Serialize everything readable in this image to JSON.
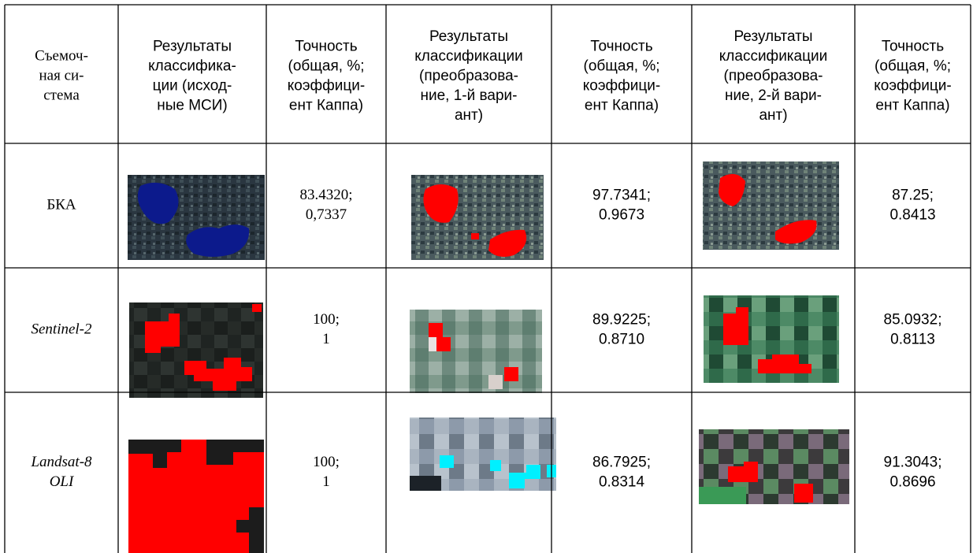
{
  "table": {
    "header": [
      [
        "Съемоч-",
        "ная си-",
        "стема"
      ],
      [
        "Результаты",
        "классифика-",
        "ции (исход-",
        "ные МСИ)"
      ],
      [
        "Точность",
        "(общая, %;",
        "коэффици-",
        "ент Каппа)"
      ],
      [
        "Результаты",
        "классификации",
        "(преобразова-",
        "ние, 1-й вари-",
        "ант)"
      ],
      [
        "Точность",
        "(общая, %;",
        "коэффици-",
        "ент Каппа)"
      ],
      [
        "Результаты",
        "классификации",
        "(преобразова-",
        "ние, 2-й вари-",
        "ант)"
      ],
      [
        "Точность",
        "(общая, %;",
        "коэффици-",
        "ент Каппа)"
      ]
    ],
    "rows": [
      {
        "system": [
          "БКА"
        ],
        "accuracy": [
          [
            "83.4320;",
            "0,7337"
          ],
          [
            "97.7341;",
            "0.9673"
          ],
          [
            "87.25;",
            "0.8413"
          ]
        ]
      },
      {
        "system": [
          "Sentinel-2"
        ],
        "accuracy": [
          [
            "100;",
            "1"
          ],
          [
            "89.9225;",
            "0.8710"
          ],
          [
            "85.0932;",
            "0.8113"
          ]
        ]
      },
      {
        "system": [
          "Landsat-8",
          "OLI"
        ],
        "accuracy": [
          [
            "100;",
            "1"
          ],
          [
            "86.7925;",
            "0.8314"
          ],
          [
            "91.3043;",
            "0.8696"
          ]
        ]
      }
    ]
  }
}
